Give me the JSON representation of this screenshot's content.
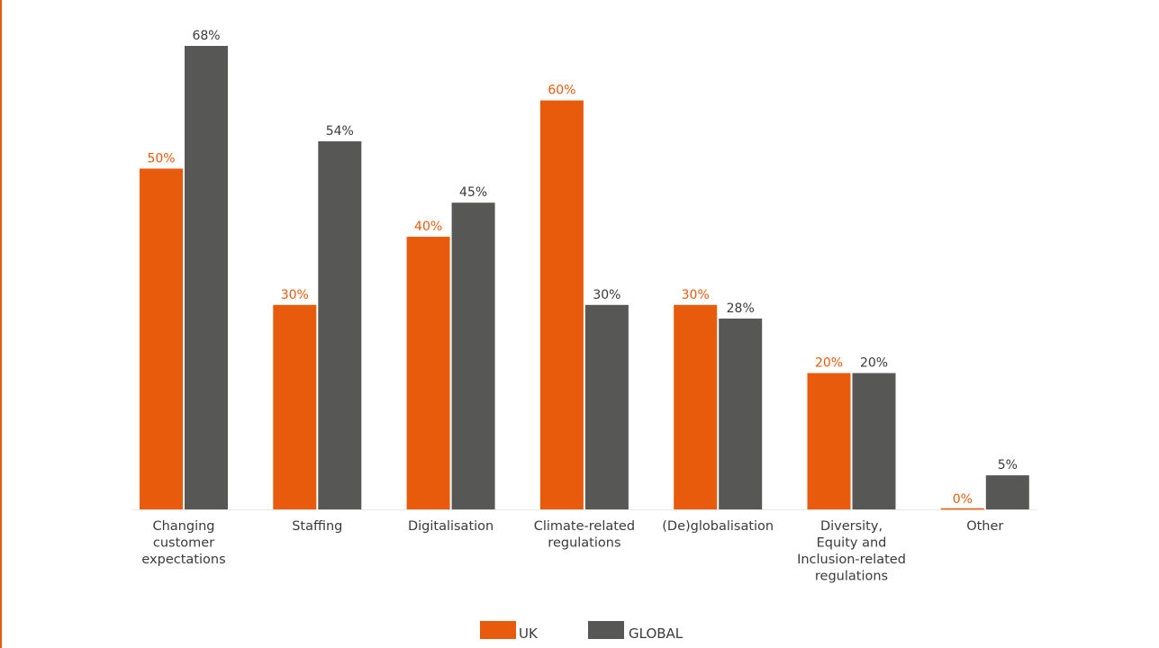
{
  "chart_data": {
    "type": "bar",
    "categories": [
      [
        "Changing",
        "customer",
        "expectations"
      ],
      [
        "Staffing"
      ],
      [
        "Digitalisation"
      ],
      [
        "Climate-related",
        "regulations"
      ],
      [
        "(De)globalisation"
      ],
      [
        "Diversity,",
        "Equity and",
        "Inclusion-related",
        "regulations"
      ],
      [
        "Other"
      ]
    ],
    "series": [
      {
        "name": "UK",
        "color": "#e85a0c",
        "values": [
          50,
          30,
          40,
          60,
          30,
          20,
          0
        ],
        "labels": [
          "50%",
          "30%",
          "40%",
          "60%",
          "30%",
          "20%",
          "0%"
        ]
      },
      {
        "name": "GLOBAL",
        "color": "#575756",
        "values": [
          68,
          54,
          45,
          30,
          28,
          20,
          5
        ],
        "labels": [
          "68%",
          "54%",
          "45%",
          "30%",
          "28%",
          "20%",
          "5%"
        ]
      }
    ],
    "ylim": [
      0,
      68
    ],
    "grid": false,
    "legend_position": "bottom-center",
    "title": "",
    "xlabel": "",
    "ylabel": ""
  }
}
